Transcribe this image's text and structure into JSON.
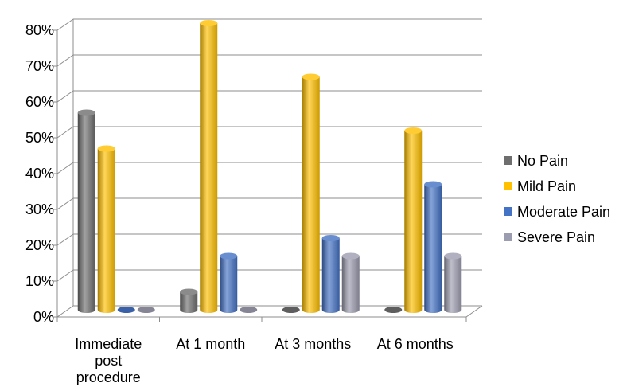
{
  "chart_data": {
    "type": "bar",
    "categories": [
      [
        "Immediate",
        "post",
        "procedure"
      ],
      [
        "At 1 month"
      ],
      [
        "At 3 months"
      ],
      [
        "At 6 months"
      ]
    ],
    "y_ticks": [
      "0%",
      "10%",
      "20%",
      "30%",
      "40%",
      "50%",
      "60%",
      "70%",
      "80%"
    ],
    "ylim": [
      0,
      80
    ],
    "grid": true,
    "legend_position": "right",
    "series": [
      {
        "name": "No Pain",
        "color": "#6e6e6e",
        "values": [
          55,
          5,
          0,
          0
        ]
      },
      {
        "name": "Mild Pain",
        "color": "#ffc000",
        "values": [
          45,
          80,
          65,
          50
        ]
      },
      {
        "name": "Moderate Pain",
        "color": "#4472c4",
        "values": [
          0,
          15,
          20,
          35
        ]
      },
      {
        "name": "Severe Pain",
        "color": "#9c9cb0",
        "values": [
          0,
          0,
          15,
          15
        ]
      }
    ]
  }
}
